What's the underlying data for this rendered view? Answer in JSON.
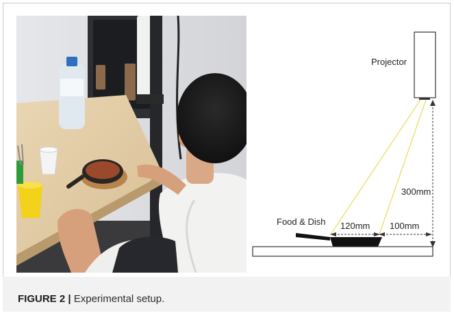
{
  "figure": {
    "label": "FIGURE 2 |",
    "caption": "Experimental setup."
  },
  "diagram": {
    "projector_label": "Projector",
    "food_label": "Food & Dish",
    "dish_width": "120mm",
    "offset": "100mm",
    "height": "300mm"
  },
  "colors": {
    "projection_lines": "#e8e070",
    "caption_bg": "#f2f2f2"
  }
}
